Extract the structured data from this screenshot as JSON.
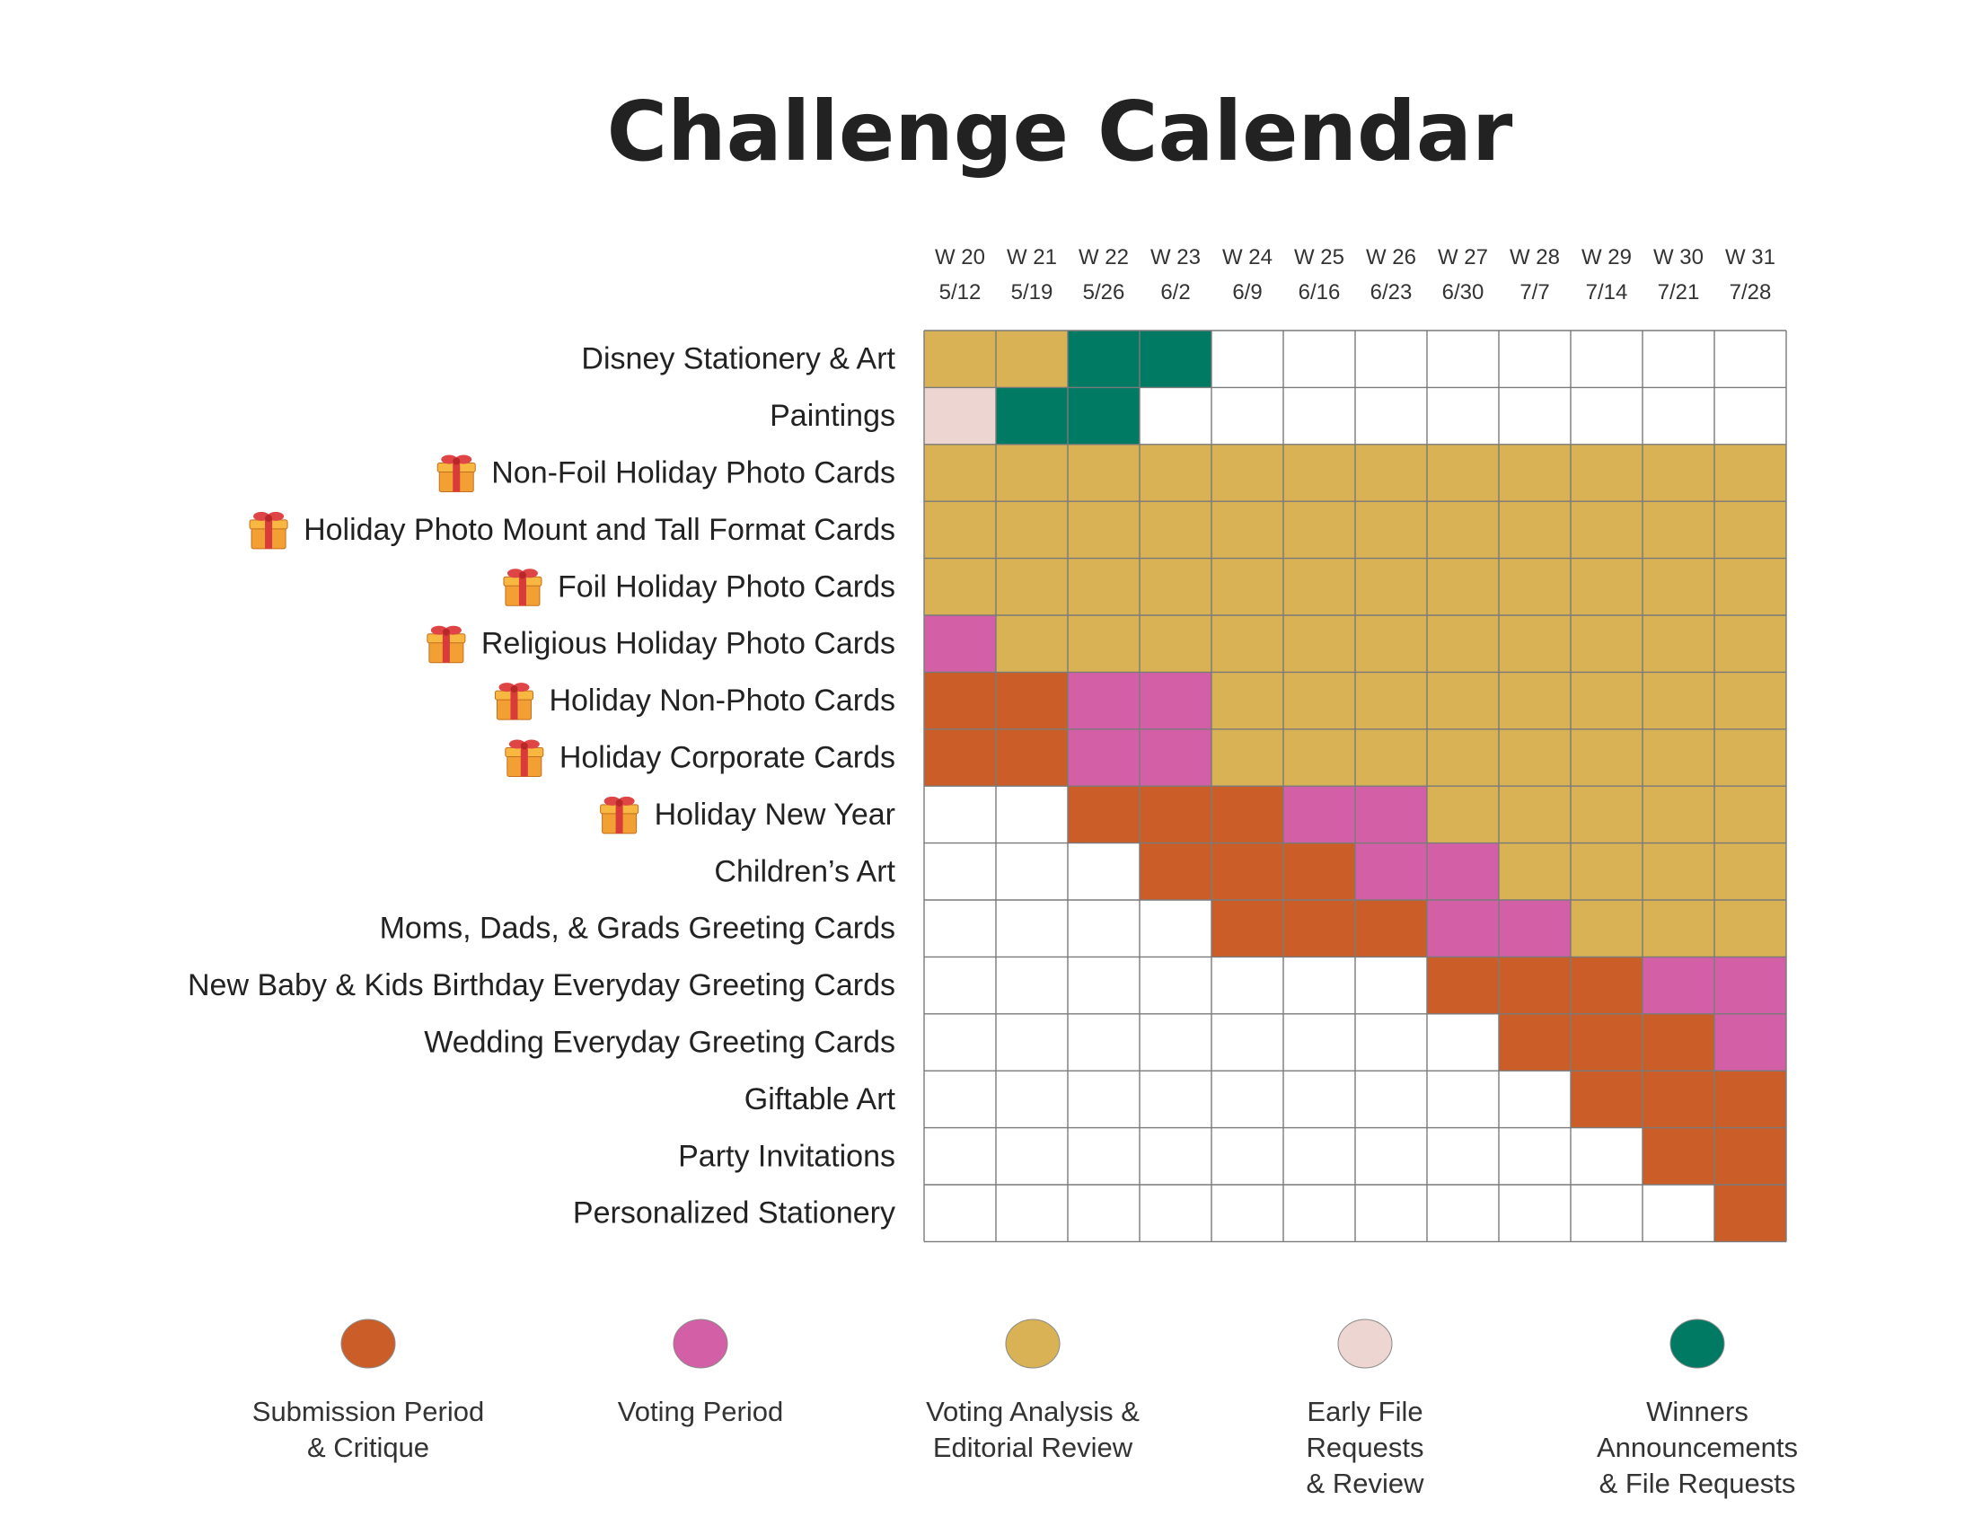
{
  "chart_data": {
    "type": "heatmap",
    "title": "Challenge Calendar",
    "columns": [
      {
        "week": "W 20",
        "date": "5/12"
      },
      {
        "week": "W 21",
        "date": "5/19"
      },
      {
        "week": "W 22",
        "date": "5/26"
      },
      {
        "week": "W 23",
        "date": "6/2"
      },
      {
        "week": "W 24",
        "date": "6/9"
      },
      {
        "week": "W 25",
        "date": "6/16"
      },
      {
        "week": "W 26",
        "date": "6/23"
      },
      {
        "week": "W 27",
        "date": "6/30"
      },
      {
        "week": "W 28",
        "date": "7/7"
      },
      {
        "week": "W 29",
        "date": "7/14"
      },
      {
        "week": "W 30",
        "date": "7/21"
      },
      {
        "week": "W 31",
        "date": "7/28"
      }
    ],
    "categories": [
      {
        "key": "S",
        "label": "Submission Period\n& Critique",
        "color": "#CB5E28"
      },
      {
        "key": "V",
        "label": "Voting Period",
        "color": "#D35FA6"
      },
      {
        "key": "A",
        "label": "Voting Analysis &\nEditorial Review",
        "color": "#D8B255"
      },
      {
        "key": "E",
        "label": "Early File\nRequests\n& Review",
        "color": "#EDD5D1"
      },
      {
        "key": "W",
        "label": "Winners\nAnnouncements\n& File Requests",
        "color": "#007A63"
      }
    ],
    "rows": [
      {
        "label": "Disney Stationery & Art",
        "gift": false,
        "cells": [
          "A",
          "A",
          "W",
          "W",
          "",
          "",
          "",
          "",
          "",
          "",
          "",
          ""
        ]
      },
      {
        "label": "Paintings",
        "gift": false,
        "cells": [
          "E",
          "W",
          "W",
          "",
          "",
          "",
          "",
          "",
          "",
          "",
          "",
          ""
        ]
      },
      {
        "label": "Non-Foil Holiday Photo Cards",
        "gift": true,
        "cells": [
          "A",
          "A",
          "A",
          "A",
          "A",
          "A",
          "A",
          "A",
          "A",
          "A",
          "A",
          "A"
        ]
      },
      {
        "label": "Holiday Photo Mount and Tall Format Cards",
        "gift": true,
        "cells": [
          "A",
          "A",
          "A",
          "A",
          "A",
          "A",
          "A",
          "A",
          "A",
          "A",
          "A",
          "A"
        ]
      },
      {
        "label": "Foil Holiday Photo Cards",
        "gift": true,
        "cells": [
          "A",
          "A",
          "A",
          "A",
          "A",
          "A",
          "A",
          "A",
          "A",
          "A",
          "A",
          "A"
        ]
      },
      {
        "label": "Religious Holiday Photo Cards",
        "gift": true,
        "cells": [
          "V",
          "A",
          "A",
          "A",
          "A",
          "A",
          "A",
          "A",
          "A",
          "A",
          "A",
          "A"
        ]
      },
      {
        "label": "Holiday Non-Photo Cards",
        "gift": true,
        "cells": [
          "S",
          "S",
          "V",
          "V",
          "A",
          "A",
          "A",
          "A",
          "A",
          "A",
          "A",
          "A"
        ]
      },
      {
        "label": "Holiday Corporate Cards",
        "gift": true,
        "cells": [
          "S",
          "S",
          "V",
          "V",
          "A",
          "A",
          "A",
          "A",
          "A",
          "A",
          "A",
          "A"
        ]
      },
      {
        "label": "Holiday New Year",
        "gift": true,
        "cells": [
          "",
          "",
          "S",
          "S",
          "S",
          "V",
          "V",
          "A",
          "A",
          "A",
          "A",
          "A"
        ]
      },
      {
        "label": "Children’s Art",
        "gift": false,
        "cells": [
          "",
          "",
          "",
          "S",
          "S",
          "S",
          "V",
          "V",
          "A",
          "A",
          "A",
          "A"
        ]
      },
      {
        "label": "Moms, Dads, & Grads Greeting Cards",
        "gift": false,
        "cells": [
          "",
          "",
          "",
          "",
          "S",
          "S",
          "S",
          "V",
          "V",
          "A",
          "A",
          "A"
        ]
      },
      {
        "label": "New Baby & Kids Birthday Everyday Greeting Cards",
        "gift": false,
        "cells": [
          "",
          "",
          "",
          "",
          "",
          "",
          "",
          "S",
          "S",
          "S",
          "V",
          "V"
        ]
      },
      {
        "label": "Wedding Everyday Greeting Cards",
        "gift": false,
        "cells": [
          "",
          "",
          "",
          "",
          "",
          "",
          "",
          "",
          "S",
          "S",
          "S",
          "V"
        ]
      },
      {
        "label": "Giftable Art",
        "gift": false,
        "cells": [
          "",
          "",
          "",
          "",
          "",
          "",
          "",
          "",
          "",
          "S",
          "S",
          "S"
        ]
      },
      {
        "label": "Party Invitations",
        "gift": false,
        "cells": [
          "",
          "",
          "",
          "",
          "",
          "",
          "",
          "",
          "",
          "",
          "S",
          "S"
        ]
      },
      {
        "label": "Personalized Stationery",
        "gift": false,
        "cells": [
          "",
          "",
          "",
          "",
          "",
          "",
          "",
          "",
          "",
          "",
          "",
          "S"
        ]
      }
    ],
    "legend_placement": "bottom",
    "grid": true
  }
}
